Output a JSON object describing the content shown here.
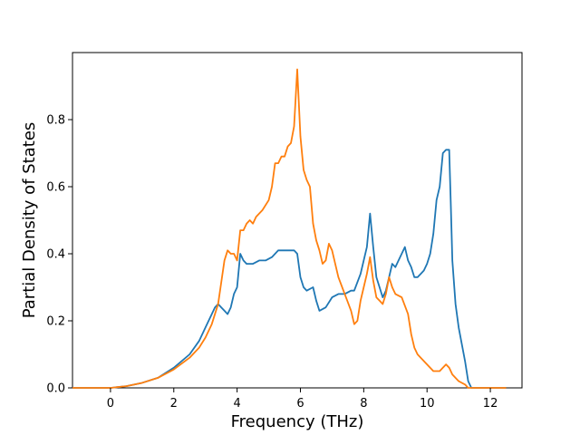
{
  "chart_data": {
    "type": "line",
    "title": "",
    "xlabel": "Frequency (THz)",
    "ylabel": "Partial Density of States",
    "xlim": [
      -1.2,
      13.0
    ],
    "ylim": [
      0.0,
      1.0
    ],
    "xticks": [
      0,
      2,
      4,
      6,
      8,
      10,
      12
    ],
    "yticks": [
      0.0,
      0.2,
      0.4,
      0.6,
      0.8
    ],
    "xtick_labels": [
      "0",
      "2",
      "4",
      "6",
      "8",
      "10",
      "12"
    ],
    "ytick_labels": [
      "0.0",
      "0.2",
      "0.4",
      "0.6",
      "0.8"
    ],
    "grid": false,
    "legend": "none",
    "series": [
      {
        "color": "#1f77b4",
        "x": [
          -1.2,
          0.0,
          0.5,
          1.0,
          1.5,
          2.0,
          2.5,
          2.8,
          3.0,
          3.2,
          3.3,
          3.4,
          3.5,
          3.6,
          3.7,
          3.8,
          3.9,
          4.0,
          4.1,
          4.2,
          4.3,
          4.5,
          4.7,
          4.9,
          5.1,
          5.3,
          5.4,
          5.6,
          5.8,
          5.9,
          6.0,
          6.1,
          6.2,
          6.4,
          6.5,
          6.6,
          6.8,
          7.0,
          7.2,
          7.4,
          7.6,
          7.7,
          7.9,
          8.1,
          8.2,
          8.3,
          8.4,
          8.5,
          8.6,
          8.7,
          8.8,
          8.9,
          9.0,
          9.1,
          9.2,
          9.3,
          9.4,
          9.5,
          9.6,
          9.7,
          9.8,
          9.9,
          10.0,
          10.1,
          10.2,
          10.3,
          10.4,
          10.5,
          10.6,
          10.7,
          10.75,
          10.8,
          10.9,
          11.0,
          11.1,
          11.2,
          11.3,
          11.4,
          11.5,
          11.6,
          12.0,
          12.5
        ],
        "values": [
          0.0,
          0.0,
          0.005,
          0.015,
          0.03,
          0.06,
          0.1,
          0.14,
          0.18,
          0.22,
          0.24,
          0.25,
          0.24,
          0.23,
          0.22,
          0.24,
          0.28,
          0.3,
          0.4,
          0.38,
          0.37,
          0.37,
          0.38,
          0.38,
          0.39,
          0.41,
          0.41,
          0.41,
          0.41,
          0.4,
          0.33,
          0.3,
          0.29,
          0.3,
          0.26,
          0.23,
          0.24,
          0.27,
          0.28,
          0.28,
          0.29,
          0.29,
          0.34,
          0.42,
          0.52,
          0.42,
          0.33,
          0.3,
          0.27,
          0.29,
          0.33,
          0.37,
          0.36,
          0.38,
          0.4,
          0.42,
          0.38,
          0.36,
          0.33,
          0.33,
          0.34,
          0.35,
          0.37,
          0.4,
          0.46,
          0.56,
          0.6,
          0.7,
          0.71,
          0.71,
          0.55,
          0.38,
          0.25,
          0.18,
          0.13,
          0.08,
          0.02,
          0.0,
          0.0,
          0.0,
          0.0,
          0.0
        ]
      },
      {
        "color": "#ff7f0e",
        "x": [
          -1.2,
          0.0,
          0.5,
          1.0,
          1.5,
          2.0,
          2.5,
          2.8,
          3.0,
          3.2,
          3.4,
          3.6,
          3.7,
          3.8,
          3.9,
          4.0,
          4.1,
          4.2,
          4.3,
          4.4,
          4.5,
          4.6,
          4.8,
          5.0,
          5.1,
          5.2,
          5.3,
          5.4,
          5.5,
          5.6,
          5.7,
          5.8,
          5.9,
          6.0,
          6.1,
          6.2,
          6.3,
          6.4,
          6.5,
          6.6,
          6.7,
          6.8,
          6.9,
          7.0,
          7.2,
          7.4,
          7.6,
          7.7,
          7.8,
          7.9,
          8.0,
          8.1,
          8.2,
          8.3,
          8.4,
          8.5,
          8.6,
          8.7,
          8.8,
          8.9,
          9.0,
          9.2,
          9.4,
          9.5,
          9.6,
          9.7,
          9.8,
          10.0,
          10.2,
          10.4,
          10.5,
          10.6,
          10.7,
          10.8,
          11.0,
          11.2,
          11.3,
          11.4,
          11.6,
          12.0,
          12.5
        ],
        "values": [
          0.0,
          0.0,
          0.005,
          0.015,
          0.03,
          0.055,
          0.09,
          0.12,
          0.15,
          0.19,
          0.25,
          0.38,
          0.41,
          0.4,
          0.4,
          0.38,
          0.47,
          0.47,
          0.49,
          0.5,
          0.49,
          0.51,
          0.53,
          0.56,
          0.6,
          0.67,
          0.67,
          0.69,
          0.69,
          0.72,
          0.73,
          0.78,
          0.95,
          0.75,
          0.65,
          0.62,
          0.6,
          0.49,
          0.44,
          0.41,
          0.37,
          0.38,
          0.43,
          0.41,
          0.33,
          0.28,
          0.23,
          0.19,
          0.2,
          0.26,
          0.3,
          0.34,
          0.39,
          0.32,
          0.27,
          0.26,
          0.25,
          0.28,
          0.33,
          0.3,
          0.28,
          0.27,
          0.22,
          0.16,
          0.12,
          0.1,
          0.09,
          0.07,
          0.05,
          0.05,
          0.06,
          0.07,
          0.06,
          0.04,
          0.02,
          0.01,
          0.0,
          0.0,
          0.0,
          0.0,
          0.0
        ]
      }
    ]
  }
}
